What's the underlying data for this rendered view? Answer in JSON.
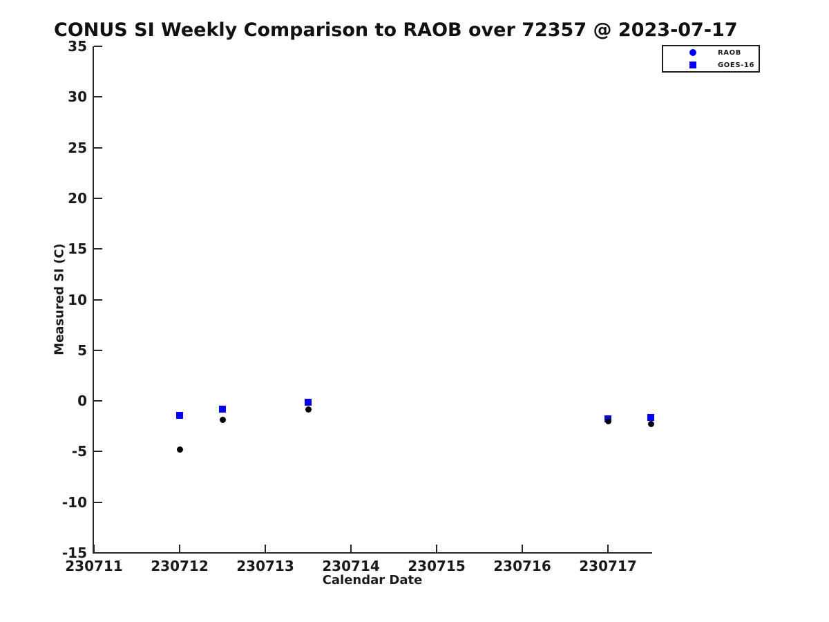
{
  "title": "CONUS SI Weekly Comparison to RAOB over 72357 @ 2023-07-17",
  "colors": {
    "accent_blue": "#0000ff",
    "marker_black": "#000000",
    "axis": "#262626",
    "text": "#1a1a1a",
    "background": "#ffffff"
  },
  "chart_data": {
    "type": "scatter",
    "title": "CONUS SI Weekly Comparison to RAOB over 72357 @ 2023-07-17",
    "xlabel": "Calendar Date",
    "ylabel": "Measured SI (C)",
    "xlim": [
      230711,
      230717.5
    ],
    "ylim": [
      -15,
      35
    ],
    "x_ticks": [
      230711,
      230712,
      230713,
      230714,
      230715,
      230716,
      230717
    ],
    "y_ticks": [
      35,
      30,
      25,
      20,
      15,
      10,
      5,
      0,
      -5,
      -10,
      -15
    ],
    "grid": false,
    "legend_position": "top-right-outside",
    "series": [
      {
        "name": "RAOB",
        "marker": "circle",
        "legend_color": "#0000ff",
        "plot_color": "#000000",
        "points": [
          [
            230712.0,
            -4.8
          ],
          [
            230712.5,
            -1.85
          ],
          [
            230713.5,
            -0.85
          ],
          [
            230717.0,
            -2.0
          ],
          [
            230717.5,
            -2.25
          ]
        ]
      },
      {
        "name": "GOES-16",
        "marker": "square",
        "legend_color": "#0000ff",
        "plot_color": "#0000ff",
        "points": [
          [
            230712.0,
            -1.45
          ],
          [
            230712.5,
            -0.8
          ],
          [
            230713.5,
            -0.1
          ],
          [
            230717.0,
            -1.8
          ],
          [
            230717.5,
            -1.65
          ]
        ]
      }
    ]
  }
}
